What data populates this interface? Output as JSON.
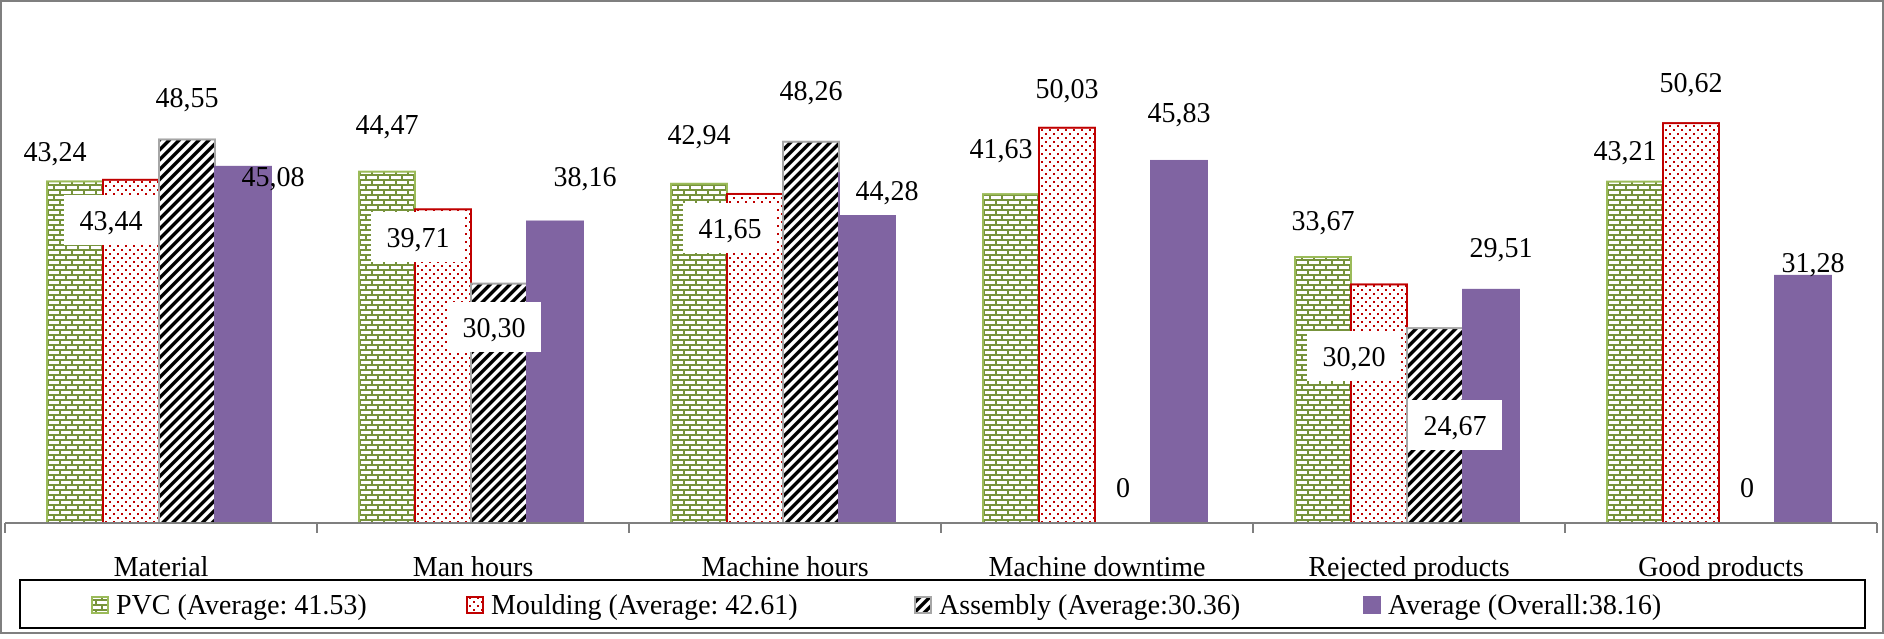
{
  "chart_data": {
    "type": "bar",
    "categories": [
      "Material",
      "Man hours",
      "Machine hours",
      "Machine downtime",
      "Rejected products",
      "Good products"
    ],
    "series": [
      {
        "name": "PVC (Average: 41.53)",
        "values": [
          43.24,
          44.47,
          42.94,
          41.63,
          33.67,
          43.21
        ],
        "labels": [
          "43,24",
          "44,47",
          "42,94",
          "41,63",
          "33,67",
          "43,21"
        ],
        "color": "#77933c",
        "pattern": "green-bricks"
      },
      {
        "name": "Moulding (Average: 42.61)",
        "values": [
          43.44,
          39.71,
          41.65,
          50.03,
          30.2,
          50.62
        ],
        "labels": [
          "43,44",
          "39,71",
          "41,65",
          "50,03",
          "30,20",
          "50,62"
        ],
        "color": "#c00000",
        "pattern": "red-dots"
      },
      {
        "name": "Assembly (Average:30.36)",
        "values": [
          48.55,
          30.3,
          48.26,
          0,
          24.67,
          0
        ],
        "labels": [
          "48,55",
          "30,30",
          "48,26",
          "0",
          "24,67",
          "0"
        ],
        "color": "#000000",
        "pattern": "black-diagonal"
      },
      {
        "name": "Average (Overall:38.16)",
        "values": [
          45.08,
          38.16,
          44.28,
          45.83,
          29.51,
          31.28
        ],
        "labels": [
          "45,08",
          "38,16",
          "44,28",
          "45,83",
          "29,51",
          "31,28"
        ],
        "color": "#8064a2",
        "pattern": "solid"
      }
    ],
    "ylim": [
      0,
      55
    ],
    "grid": false,
    "legend_position": "bottom"
  }
}
